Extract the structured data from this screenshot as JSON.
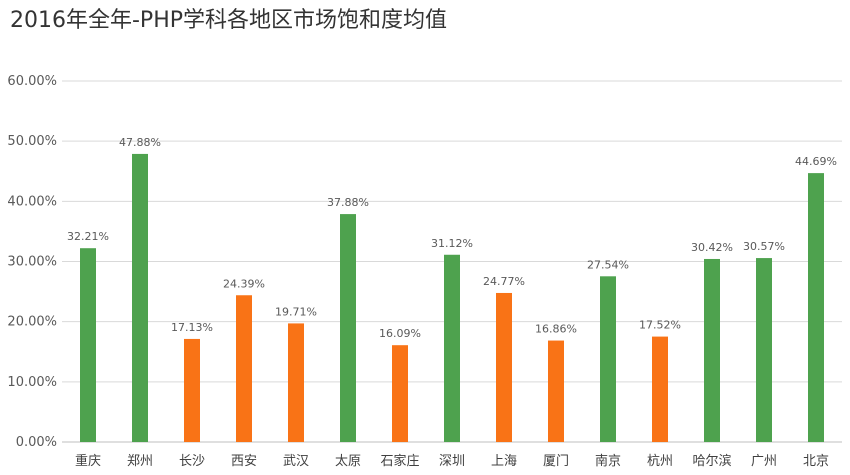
{
  "chart_data": {
    "type": "bar",
    "title": "2016年全年-PHP学科各地区市场饱和度均值",
    "categories": [
      "重庆",
      "郑州",
      "长沙",
      "西安",
      "武汉",
      "太原",
      "石家庄",
      "深圳",
      "上海",
      "厦门",
      "南京",
      "杭州",
      "哈尔滨",
      "广州",
      "北京"
    ],
    "values": [
      32.21,
      47.88,
      17.13,
      24.39,
      19.71,
      37.88,
      16.09,
      31.12,
      24.77,
      16.86,
      27.54,
      17.52,
      30.42,
      30.57,
      44.69
    ],
    "data_labels": [
      "32.21%",
      "47.88%",
      "17.13%",
      "24.39%",
      "19.71%",
      "37.88%",
      "16.09%",
      "31.12%",
      "24.77%",
      "16.86%",
      "27.54%",
      "17.52%",
      "30.42%",
      "30.57%",
      "44.69%"
    ],
    "bar_colors": [
      "#4ea24e",
      "#4ea24e",
      "#f97316",
      "#f97316",
      "#f97316",
      "#4ea24e",
      "#f97316",
      "#4ea24e",
      "#f97316",
      "#f97316",
      "#4ea24e",
      "#f97316",
      "#4ea24e",
      "#4ea24e",
      "#4ea24e"
    ],
    "ylim": [
      0,
      60
    ],
    "yticks": [
      0,
      10,
      20,
      30,
      40,
      50,
      60
    ],
    "ytick_labels": [
      "0.00%",
      "10.00%",
      "20.00%",
      "30.00%",
      "40.00%",
      "50.00%",
      "60.00%"
    ],
    "grid": true,
    "xlabel": "",
    "ylabel": ""
  }
}
